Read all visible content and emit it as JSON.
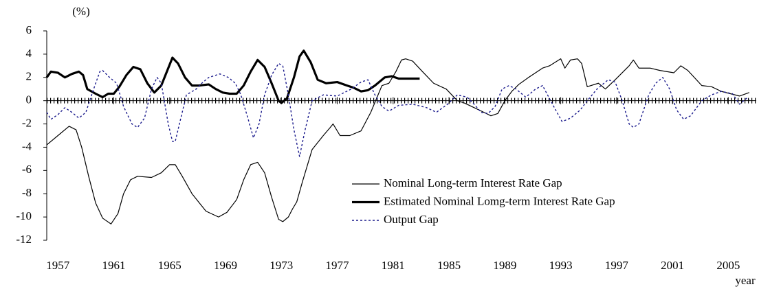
{
  "chart_data": {
    "type": "line",
    "y_unit_label": "(%)",
    "x_label": "year",
    "xlim": [
      1956.2,
      2007.0
    ],
    "xticks": [
      1957,
      1961,
      1965,
      1969,
      1973,
      1977,
      1981,
      1985,
      1989,
      1993,
      1997,
      2001,
      2005
    ],
    "ylim": [
      -12,
      6
    ],
    "yticks": [
      -12,
      -10,
      -8,
      -6,
      -4,
      -2,
      0,
      2,
      4,
      6
    ],
    "grid": false,
    "legend": "lower center",
    "series": [
      {
        "name": "Nominal Long-term Interest Rate Gap",
        "color": "#000000",
        "line_width": 1.2,
        "dashed": false,
        "x": [
          1956.2,
          1957.0,
          1957.8,
          1958.3,
          1958.7,
          1959.2,
          1959.7,
          1960.2,
          1960.8,
          1961.3,
          1961.7,
          1962.2,
          1962.7,
          1963.7,
          1964.4,
          1965.0,
          1965.4,
          1965.9,
          1966.6,
          1967.6,
          1968.5,
          1969.1,
          1969.8,
          1970.3,
          1970.8,
          1971.3,
          1971.8,
          1972.3,
          1972.8,
          1973.1,
          1973.5,
          1973.8,
          1974.1,
          1974.5,
          1975.2,
          1976.0,
          1976.5,
          1976.7,
          1977.2,
          1977.9,
          1978.7,
          1979.4,
          1980.2,
          1980.7,
          1981.2,
          1981.6,
          1981.9,
          1982.4,
          1983.1,
          1983.9,
          1984.8,
          1985.6,
          1986.1,
          1986.8,
          1987.5,
          1988.0,
          1988.5,
          1989.0,
          1989.5,
          1990.0,
          1990.7,
          1991.7,
          1992.2,
          1993.0,
          1993.3,
          1993.7,
          1994.2,
          1994.5,
          1994.9,
          1995.7,
          1996.2,
          1996.9,
          1997.9,
          1998.2,
          1998.6,
          1999.4,
          2000.1,
          2001.1,
          2001.6,
          2002.1,
          2003.1,
          2003.8,
          2004.5,
          2005.8,
          2006.5
        ],
        "values": [
          -3.8,
          -3.0,
          -2.2,
          -2.5,
          -4,
          -6.5,
          -8.8,
          -10.1,
          -10.6,
          -9.7,
          -8,
          -6.8,
          -6.5,
          -6.6,
          -6.2,
          -5.5,
          -5.5,
          -6.5,
          -8,
          -9.5,
          -10,
          -9.6,
          -8.5,
          -6.8,
          -5.5,
          -5.3,
          -6.2,
          -8.3,
          -10.2,
          -10.4,
          -10,
          -9.3,
          -8.7,
          -7,
          -4.2,
          -3.0,
          -2.3,
          -2.0,
          -3,
          -3,
          -2.6,
          -1,
          1.3,
          1.5,
          2.5,
          3.5,
          3.6,
          3.4,
          2.5,
          1.5,
          1.0,
          0,
          -0.2,
          -0.6,
          -1,
          -1.3,
          -1.1,
          0,
          0.8,
          1.4,
          2,
          2.8,
          3,
          3.6,
          2.8,
          3.5,
          3.6,
          3.2,
          1.2,
          1.5,
          1.0,
          1.8,
          3.0,
          3.5,
          2.8,
          2.8,
          2.6,
          2.4,
          3,
          2.6,
          1.3,
          1.2,
          0.8,
          0.4,
          0.7
        ]
      },
      {
        "name": "Estimated Nominal Lomg-term Interest Rate Gap",
        "color": "#000000",
        "line_width": 3.2,
        "dashed": false,
        "x": [
          1956.2,
          1956.5,
          1957.0,
          1957.5,
          1958.0,
          1958.5,
          1958.8,
          1959.1,
          1959.7,
          1960.2,
          1960.6,
          1961.0,
          1961.4,
          1961.9,
          1962.4,
          1962.9,
          1963.4,
          1963.9,
          1964.4,
          1964.9,
          1965.2,
          1965.6,
          1966.1,
          1966.6,
          1967.1,
          1967.8,
          1968.3,
          1968.8,
          1969.3,
          1969.8,
          1970.3,
          1970.8,
          1971.3,
          1971.8,
          1972.3,
          1972.8,
          1973.0,
          1973.4,
          1973.9,
          1974.3,
          1974.6,
          1975.1,
          1975.6,
          1976.2,
          1977.0,
          1977.7,
          1978.2,
          1978.7,
          1979.2,
          1979.7,
          1980.4,
          1980.9,
          1981.4,
          1982.9
        ],
        "values": [
          2.0,
          2.5,
          2.4,
          2.0,
          2.3,
          2.5,
          2.2,
          1.0,
          0.6,
          0.3,
          0.6,
          0.6,
          1.2,
          2.2,
          2.9,
          2.7,
          1.5,
          0.7,
          1.3,
          2.8,
          3.7,
          3.2,
          2.0,
          1.3,
          1.3,
          1.4,
          1.0,
          0.7,
          0.6,
          0.6,
          1.3,
          2.5,
          3.5,
          2.9,
          1.5,
          0.0,
          -0.2,
          0.2,
          2.0,
          3.8,
          4.3,
          3.3,
          1.8,
          1.5,
          1.6,
          1.3,
          1.1,
          0.8,
          0.9,
          1.3,
          2.0,
          2.1,
          1.9,
          1.9
        ]
      },
      {
        "name": "Output Gap",
        "color": "#1a1a8c",
        "line_width": 1.4,
        "dashed": true,
        "x": [
          1956.2,
          1956.5,
          1957.0,
          1957.5,
          1958.0,
          1958.5,
          1959.0,
          1959.5,
          1960.0,
          1960.2,
          1960.7,
          1961.2,
          1961.7,
          1962.3,
          1962.7,
          1963.2,
          1963.7,
          1964.1,
          1964.4,
          1964.9,
          1965.2,
          1965.4,
          1965.7,
          1966.2,
          1966.9,
          1967.3,
          1967.8,
          1968.6,
          1969.2,
          1969.7,
          1970.1,
          1970.6,
          1971.0,
          1971.4,
          1971.8,
          1972.3,
          1972.8,
          1973.1,
          1973.5,
          1973.9,
          1974.3,
          1974.7,
          1975.2,
          1976.0,
          1977.0,
          1978.0,
          1978.7,
          1979.2,
          1979.7,
          1980.2,
          1980.7,
          1981.4,
          1982.4,
          1983.4,
          1984.1,
          1984.9,
          1985.6,
          1986.3,
          1986.8,
          1987.3,
          1987.8,
          1988.3,
          1988.8,
          1989.3,
          1989.8,
          1990.5,
          1991.2,
          1991.7,
          1992.5,
          1993.1,
          1993.7,
          1994.4,
          1994.9,
          1995.6,
          1996.4,
          1996.9,
          1997.4,
          1997.9,
          1998.2,
          1998.6,
          1999.3,
          1999.8,
          2000.3,
          2000.8,
          2001.3,
          2001.8,
          2002.3,
          2003.1,
          2003.8,
          2004.5,
          2005.3,
          2005.8,
          2006.3,
          2006.5
        ],
        "values": [
          -1.0,
          -1.6,
          -1.2,
          -0.6,
          -1.0,
          -1.5,
          -1.0,
          0.8,
          2.5,
          2.6,
          2.0,
          1.5,
          -0.5,
          -2.0,
          -2.3,
          -1.5,
          1.0,
          2.0,
          1.5,
          -2.0,
          -3.5,
          -3.5,
          -2.0,
          0.5,
          1.0,
          1.5,
          2.0,
          2.3,
          2.0,
          1.5,
          0.5,
          -1.5,
          -3.2,
          -2.0,
          0.5,
          2.2,
          3.2,
          3.0,
          0.5,
          -2.5,
          -4.8,
          -2.5,
          0,
          0.5,
          0.4,
          1.0,
          1.6,
          1.8,
          0.5,
          -0.5,
          -0.9,
          -0.4,
          -0.3,
          -0.6,
          -1.0,
          -0.3,
          0.5,
          0.3,
          -0.3,
          -1.0,
          -1.1,
          -0.5,
          1.0,
          1.3,
          1.0,
          0.3,
          1.0,
          1.3,
          -0.5,
          -1.8,
          -1.5,
          -0.8,
          0,
          1.0,
          1.8,
          1.6,
          0,
          -2.0,
          -2.3,
          -2.0,
          0.5,
          1.5,
          2.0,
          1.0,
          -0.8,
          -1.6,
          -1.3,
          0,
          0.5,
          0.8,
          0.6,
          -0.3,
          0.2,
          0.1
        ]
      }
    ]
  }
}
